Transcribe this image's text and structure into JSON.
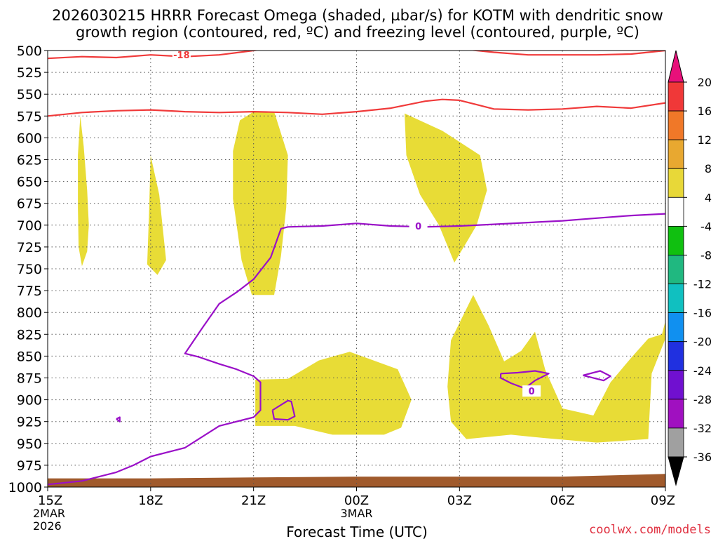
{
  "chart_data": {
    "type": "heatmap",
    "title_line1": "2026030215 HRRR Forecast Omega (shaded, µbar/s) for KOTM with dendritic snow",
    "title_line2": "growth region (contoured, red, ºC) and freezing level (contoured, purple, ºC)",
    "xlabel": "Forecast Time (UTC)",
    "credit": "coolwx.com/models",
    "x_ticks": [
      {
        "h": 0,
        "label": "15Z",
        "sub1": "2MAR",
        "sub2": "2026"
      },
      {
        "h": 3,
        "label": "18Z",
        "sub1": "",
        "sub2": ""
      },
      {
        "h": 6,
        "label": "21Z",
        "sub1": "",
        "sub2": ""
      },
      {
        "h": 9,
        "label": "00Z",
        "sub1": "3MAR",
        "sub2": ""
      },
      {
        "h": 12,
        "label": "03Z",
        "sub1": "",
        "sub2": ""
      },
      {
        "h": 15,
        "label": "06Z",
        "sub1": "",
        "sub2": ""
      },
      {
        "h": 18,
        "label": "09Z",
        "sub1": "",
        "sub2": ""
      }
    ],
    "xlim": [
      0,
      18
    ],
    "ylim": [
      1000,
      500
    ],
    "y_ticks": [
      500,
      525,
      550,
      575,
      600,
      625,
      650,
      675,
      700,
      725,
      750,
      775,
      800,
      825,
      850,
      875,
      900,
      925,
      950,
      975,
      1000
    ],
    "grid": true,
    "colorbar": {
      "labels": [
        "20",
        "16",
        "12",
        "8",
        "4",
        "-4",
        "-8",
        "-12",
        "-16",
        "-20",
        "-24",
        "-28",
        "-32",
        "-36"
      ],
      "top_color": "#e8107a",
      "segments": [
        "#f03838",
        "#f07828",
        "#e8a830",
        "#e8d838",
        "#ffffff",
        "#10c010",
        "#20b880",
        "#10c0c0",
        "#1090f0",
        "#2030e0",
        "#7010d0",
        "#a010c0",
        "#a0a0a0"
      ],
      "bottom_color": "#000000"
    },
    "omega_fill_color": "#e8dc36",
    "omega_regions": [
      {
        "level": "4",
        "points": [
          [
            0.95,
            575
          ],
          [
            1.05,
            610
          ],
          [
            1.15,
            660
          ],
          [
            1.2,
            700
          ],
          [
            1.15,
            730
          ],
          [
            1.0,
            747
          ],
          [
            0.9,
            725
          ],
          [
            0.88,
            680
          ],
          [
            0.88,
            620
          ]
        ]
      },
      {
        "level": "4",
        "points": [
          [
            3.0,
            620
          ],
          [
            3.25,
            665
          ],
          [
            3.45,
            740
          ],
          [
            3.2,
            757
          ],
          [
            2.9,
            745
          ],
          [
            2.95,
            690
          ]
        ]
      },
      {
        "level": "4",
        "points": [
          [
            6.0,
            570
          ],
          [
            6.6,
            570
          ],
          [
            7.0,
            620
          ],
          [
            6.95,
            680
          ],
          [
            6.8,
            735
          ],
          [
            6.6,
            780
          ],
          [
            5.95,
            780
          ],
          [
            5.65,
            740
          ],
          [
            5.4,
            670
          ],
          [
            5.4,
            615
          ],
          [
            5.6,
            580
          ]
        ]
      },
      {
        "level": "4",
        "points": [
          [
            10.4,
            572
          ],
          [
            11.5,
            592
          ],
          [
            12.6,
            620
          ],
          [
            12.8,
            660
          ],
          [
            12.5,
            700
          ],
          [
            12.2,
            720
          ],
          [
            11.85,
            743
          ],
          [
            11.4,
            700
          ],
          [
            10.85,
            665
          ],
          [
            10.45,
            620
          ]
        ]
      },
      {
        "level": "4",
        "points": [
          [
            6.05,
            877
          ],
          [
            7.0,
            876
          ],
          [
            7.9,
            855
          ],
          [
            8.8,
            845
          ],
          [
            10.2,
            865
          ],
          [
            10.6,
            900
          ],
          [
            10.3,
            932
          ],
          [
            9.8,
            940
          ],
          [
            8.3,
            940
          ],
          [
            7.2,
            930
          ],
          [
            6.05,
            930
          ]
        ]
      },
      {
        "level": "4",
        "points": [
          [
            11.75,
            832
          ],
          [
            12.4,
            780
          ],
          [
            12.85,
            815
          ],
          [
            13.3,
            856
          ],
          [
            13.8,
            844
          ],
          [
            14.2,
            822
          ],
          [
            14.5,
            866
          ],
          [
            15.0,
            910
          ],
          [
            15.9,
            918
          ],
          [
            16.4,
            880
          ],
          [
            17.0,
            852
          ],
          [
            17.5,
            830
          ],
          [
            17.9,
            825
          ],
          [
            18.0,
            810
          ],
          [
            18.0,
            830
          ],
          [
            17.6,
            870
          ],
          [
            17.5,
            945
          ],
          [
            16.0,
            949
          ],
          [
            14.5,
            944
          ],
          [
            13.5,
            940
          ],
          [
            12.2,
            945
          ],
          [
            11.75,
            925
          ],
          [
            11.65,
            885
          ]
        ]
      }
    ],
    "dgz_contours": [
      {
        "label": "-18",
        "label_at": [
          3.9,
          505
        ],
        "points": [
          [
            0,
            509
          ],
          [
            1,
            507
          ],
          [
            2,
            508
          ],
          [
            3,
            505
          ],
          [
            4,
            507
          ],
          [
            5,
            505
          ],
          [
            6,
            500
          ],
          [
            7.5,
            492
          ],
          [
            9,
            490
          ],
          [
            11,
            494
          ],
          [
            12,
            498
          ],
          [
            13,
            502
          ],
          [
            14,
            505
          ],
          [
            15,
            505
          ],
          [
            16,
            505
          ],
          [
            17,
            504
          ],
          [
            18,
            500
          ]
        ]
      },
      {
        "label": "",
        "label_at": null,
        "points": [
          [
            0,
            575
          ],
          [
            1,
            571
          ],
          [
            2,
            569
          ],
          [
            3,
            568
          ],
          [
            4,
            570
          ],
          [
            5,
            571
          ],
          [
            6,
            570
          ],
          [
            7,
            571
          ],
          [
            8,
            573
          ],
          [
            9,
            570
          ],
          [
            10,
            566
          ],
          [
            11,
            558
          ],
          [
            11.5,
            556
          ],
          [
            12,
            557
          ],
          [
            12.5,
            562
          ],
          [
            13,
            567
          ],
          [
            14,
            568
          ],
          [
            15,
            567
          ],
          [
            16,
            564
          ],
          [
            17,
            566
          ],
          [
            18,
            560
          ]
        ]
      }
    ],
    "freezing_contours": [
      {
        "label": "0",
        "label_at": [
          10.8,
          701
        ],
        "points": [
          [
            0,
            997
          ],
          [
            1,
            993
          ],
          [
            2,
            983
          ],
          [
            2.5,
            975
          ],
          [
            3,
            965
          ],
          [
            4,
            955
          ],
          [
            5,
            930
          ],
          [
            6,
            920
          ],
          [
            6.2,
            912
          ],
          [
            6.2,
            880
          ],
          [
            6.0,
            873
          ],
          [
            5.5,
            865
          ],
          [
            5.0,
            859
          ],
          [
            4.4,
            851
          ],
          [
            4.0,
            847
          ],
          [
            4.5,
            818
          ],
          [
            5.0,
            790
          ],
          [
            5.5,
            777
          ],
          [
            6.0,
            762
          ],
          [
            6.5,
            737
          ],
          [
            6.8,
            704
          ],
          [
            7,
            702
          ],
          [
            8,
            701
          ],
          [
            9,
            698
          ],
          [
            10,
            701
          ],
          [
            11,
            702
          ],
          [
            12,
            701
          ],
          [
            13,
            699
          ],
          [
            14,
            697
          ],
          [
            15,
            695
          ],
          [
            16,
            692
          ],
          [
            17,
            689
          ],
          [
            18,
            687
          ]
        ]
      },
      {
        "label": "",
        "label_at": null,
        "points": [
          [
            6.55,
            912
          ],
          [
            7.0,
            901
          ],
          [
            7.1,
            902
          ],
          [
            7.2,
            919
          ],
          [
            7.0,
            923
          ],
          [
            6.6,
            922
          ],
          [
            6.55,
            912
          ]
        ]
      },
      {
        "label": "",
        "label_at": null,
        "points": [
          [
            2.0,
            922
          ],
          [
            2.1,
            920
          ],
          [
            2.1,
            925
          ],
          [
            2.0,
            922
          ]
        ]
      },
      {
        "label": "0",
        "label_at": [
          14.1,
          890
        ],
        "points": [
          [
            13.2,
            870
          ],
          [
            13.7,
            869
          ],
          [
            14.2,
            867
          ],
          [
            14.6,
            870
          ],
          [
            14.2,
            878
          ],
          [
            13.9,
            887
          ],
          [
            13.5,
            881
          ],
          [
            13.2,
            875
          ],
          [
            13.2,
            870
          ]
        ]
      },
      {
        "label": "",
        "label_at": null,
        "points": [
          [
            15.6,
            872
          ],
          [
            16.1,
            867
          ],
          [
            16.4,
            873
          ],
          [
            16.2,
            878
          ],
          [
            15.6,
            872
          ]
        ]
      }
    ],
    "terrain_color": "#a05a2c",
    "terrain_top": [
      [
        0,
        990
      ],
      [
        3,
        990
      ],
      [
        6,
        989
      ],
      [
        9,
        988
      ],
      [
        12,
        988
      ],
      [
        15,
        988
      ],
      [
        18,
        985
      ]
    ]
  }
}
